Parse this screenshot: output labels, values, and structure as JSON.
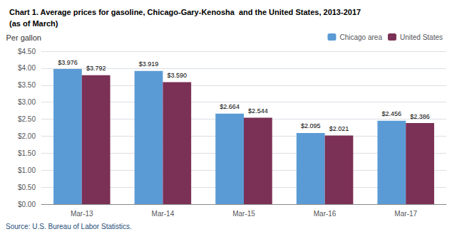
{
  "chart_data": {
    "type": "bar",
    "title": "Chart 1. Average prices for gasoline, Chicago-Gary-Kenosha  and the United States, 2013-2017",
    "subtitle": "(as of March)",
    "ylabel": "Per gallon",
    "annotations": [
      "Source: U.S. Bureau of Labor Statistics."
    ],
    "categories": [
      "Mar-13",
      "Mar-14",
      "Mar-15",
      "Mar-16",
      "Mar-17"
    ],
    "series": [
      {
        "name": "Chicago area",
        "color": "#5B9BD5",
        "values": [
          3.976,
          3.919,
          2.664,
          2.095,
          2.456
        ],
        "value_labels": [
          "$3.976",
          "$3.919",
          "$2.664",
          "$2.095",
          "$2.456"
        ]
      },
      {
        "name": "United States",
        "color": "#7B3055",
        "values": [
          3.792,
          3.59,
          2.544,
          2.021,
          2.386
        ],
        "value_labels": [
          "$3.792",
          "$3.590",
          "$2.544",
          "$2.021",
          "$2.386"
        ]
      }
    ],
    "ylim": [
      0,
      4.5
    ],
    "yticks": [
      {
        "value": 0,
        "label": "$0.00"
      },
      {
        "value": 0.5,
        "label": "$0.50"
      },
      {
        "value": 1,
        "label": "$1.00"
      },
      {
        "value": 1.5,
        "label": "$1.50"
      },
      {
        "value": 2,
        "label": "$2.00"
      },
      {
        "value": 2.5,
        "label": "$2.50"
      },
      {
        "value": 3,
        "label": "$3.00"
      },
      {
        "value": 3.5,
        "label": "$3.50"
      },
      {
        "value": 4,
        "label": "$4.00"
      },
      {
        "value": 4.5,
        "label": "$4.50"
      }
    ],
    "grid": true,
    "legend": "upper right",
    "data_labels": true
  }
}
